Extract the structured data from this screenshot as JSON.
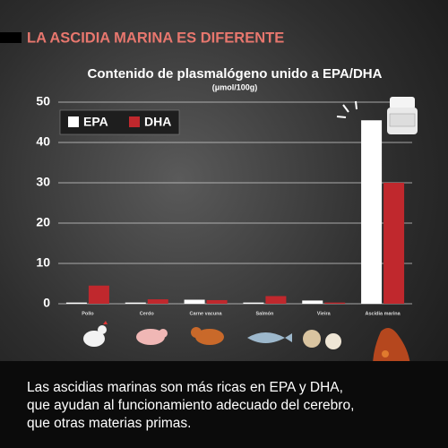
{
  "header": {
    "title": "LA ASCIDIA MARINA ES DIFERENTE"
  },
  "chart_data": {
    "type": "bar",
    "title": "Contenido de plasmalógeno unido a EPA/DHA",
    "subtitle": "(μmol/100g)",
    "categories": [
      "Pollo",
      "Cerdo",
      "Carne vacuna",
      "Salmón",
      "Vieira",
      "Ascidia marina"
    ],
    "series": [
      {
        "name": "EPA",
        "color": "#ffffff",
        "values": [
          0.3,
          0.3,
          1.0,
          0.3,
          0.8,
          45.5
        ]
      },
      {
        "name": "DHA",
        "color": "#c0282d",
        "values": [
          4.5,
          1.1,
          0.9,
          1.9,
          0.3,
          30
        ]
      }
    ],
    "ylim": [
      0,
      50
    ],
    "yticks": [
      0,
      10,
      20,
      30,
      40,
      50
    ],
    "grid": true,
    "legend": "top-left"
  },
  "footer": {
    "text": "Las ascidias marinas son más ricas en EPA y DHA, que ayudan al funcionamiento adecuado del cerebro, que otras materias primas."
  }
}
